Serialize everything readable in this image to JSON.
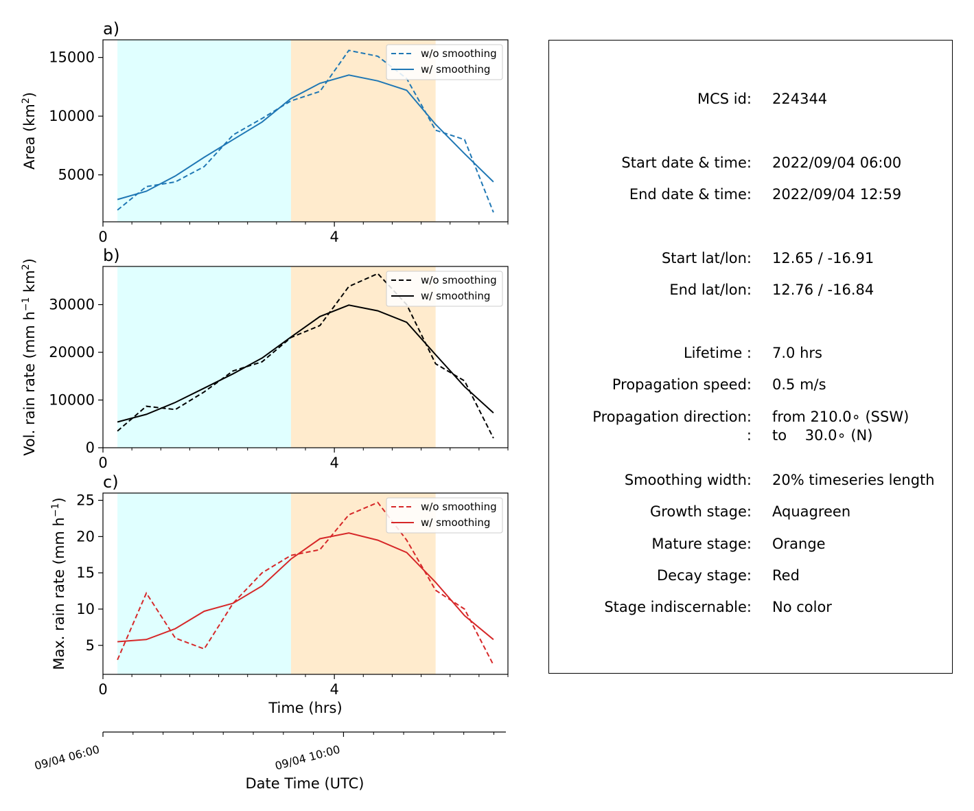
{
  "chart_data": [
    {
      "type": "line",
      "panel_label": "a)",
      "ylabel": "Area  (km",
      "ylabel_sup": "2",
      "ylabel_close": ")",
      "ylim": [
        1000,
        16500
      ],
      "yticks": [
        5000,
        10000,
        15000
      ],
      "color": "#1f77b4",
      "legend": {
        "location": "top-right",
        "entries": [
          "w/o smoothing",
          "w/ smoothing"
        ]
      },
      "series": [
        {
          "name": "w/o smoothing",
          "style": "dashed",
          "x": [
            0.25,
            0.75,
            1.25,
            1.75,
            2.25,
            2.75,
            3.25,
            3.75,
            4.25,
            4.75,
            5.25,
            5.75,
            6.25,
            6.75
          ],
          "y": [
            2000,
            4000,
            4400,
            5700,
            8400,
            9800,
            11300,
            12100,
            15600,
            15100,
            13200,
            8800,
            8000,
            1800
          ]
        },
        {
          "name": "w/ smoothing",
          "style": "solid",
          "x": [
            0.25,
            0.75,
            1.25,
            1.75,
            2.25,
            2.75,
            3.25,
            3.75,
            4.25,
            4.75,
            5.25,
            5.75,
            6.25,
            6.75
          ],
          "y": [
            2900,
            3600,
            4900,
            6500,
            8000,
            9500,
            11500,
            12800,
            13500,
            13000,
            12200,
            9300,
            6800,
            4400
          ]
        }
      ]
    },
    {
      "type": "line",
      "panel_label": "b)",
      "ylabel": "Vol. rain rate (mm h",
      "ylabel_sup": "−1",
      "ylabel_mid": " km",
      "ylabel_sup2": "2",
      "ylabel_close": ")",
      "ylim": [
        0,
        38000
      ],
      "yticks": [
        0,
        10000,
        20000,
        30000
      ],
      "color": "#000000",
      "legend": {
        "location": "top-right",
        "entries": [
          "w/o smoothing",
          "w/ smoothing"
        ]
      },
      "series": [
        {
          "name": "w/o smoothing",
          "style": "dashed",
          "x": [
            0.25,
            0.75,
            1.25,
            1.75,
            2.25,
            2.75,
            3.25,
            3.75,
            4.25,
            4.75,
            5.25,
            5.75,
            6.25,
            6.75
          ],
          "y": [
            3500,
            8700,
            8000,
            11700,
            16100,
            18000,
            23100,
            25600,
            33800,
            36500,
            30000,
            17600,
            14000,
            2000
          ]
        },
        {
          "name": "w/ smoothing",
          "style": "solid",
          "x": [
            0.25,
            0.75,
            1.25,
            1.75,
            2.25,
            2.75,
            3.25,
            3.75,
            4.25,
            4.75,
            5.25,
            5.75,
            6.25,
            6.75
          ],
          "y": [
            5400,
            7000,
            9500,
            12500,
            15500,
            18800,
            23200,
            27500,
            29900,
            28700,
            26300,
            19500,
            12800,
            7300
          ]
        }
      ]
    },
    {
      "type": "line",
      "panel_label": "c)",
      "ylabel": "Max. rain rate  (mm h",
      "ylabel_sup": "−1",
      "ylabel_close": ")",
      "ylim": [
        1,
        26
      ],
      "yticks": [
        5,
        10,
        15,
        20,
        25
      ],
      "color": "#d62728",
      "xlabel": "Time (hrs)",
      "legend": {
        "location": "top-right",
        "entries": [
          "w/o smoothing",
          "w/ smoothing"
        ]
      },
      "series": [
        {
          "name": "w/o smoothing",
          "style": "dashed",
          "x": [
            0.25,
            0.75,
            1.25,
            1.75,
            2.25,
            2.75,
            3.25,
            3.75,
            4.25,
            4.75,
            5.25,
            5.75,
            6.25,
            6.75
          ],
          "y": [
            3.0,
            12.2,
            6.0,
            4.5,
            10.8,
            15.0,
            17.4,
            18.2,
            23.0,
            24.7,
            19.5,
            12.6,
            10.0,
            2.3
          ]
        },
        {
          "name": "w/ smoothing",
          "style": "solid",
          "x": [
            0.25,
            0.75,
            1.25,
            1.75,
            2.25,
            2.75,
            3.25,
            3.75,
            4.25,
            4.75,
            5.25,
            5.75,
            6.25,
            6.75
          ],
          "y": [
            5.5,
            5.8,
            7.3,
            9.7,
            10.8,
            13.2,
            16.9,
            19.7,
            20.5,
            19.5,
            17.8,
            13.7,
            9.1,
            5.8
          ]
        }
      ]
    }
  ],
  "time_axis": {
    "xlim": [
      0,
      7
    ],
    "xticks_major": [
      0,
      4
    ],
    "xticks_minor": [
      0.5,
      1,
      1.5,
      2,
      2.5,
      3,
      3.5,
      4.5,
      5,
      5.5,
      6,
      6.5,
      7
    ],
    "growth_span": [
      0.25,
      3.25
    ],
    "mature_span": [
      3.25,
      5.75
    ],
    "growth_color": "#e0ffff",
    "mature_color": "#ffebcd"
  },
  "date_axis": {
    "xlabel": "Date Time (UTC)",
    "ticks": [
      {
        "hours": 0,
        "label": "09/04 06:00"
      },
      {
        "hours": 4,
        "label": "09/04 10:00"
      }
    ]
  },
  "info": {
    "rows": [
      {
        "label": "MCS id:",
        "value": "224344"
      },
      {
        "label": "Start date & time:",
        "value": "2022/09/04 06:00"
      },
      {
        "label": "End date & time:",
        "value": "2022/09/04 12:59"
      },
      {
        "label": "Start lat/lon:",
        "value": "12.65 / -16.91"
      },
      {
        "label": "End lat/lon:",
        "value": "12.76 / -16.84"
      },
      {
        "label": "Lifetime :",
        "value": "7.0 hrs"
      },
      {
        "label": "Propagation speed:",
        "value": "0.5 m/s"
      },
      {
        "label": "Propagation direction:",
        "value": "from 210.0∘ (SSW)"
      },
      {
        "label": ":",
        "value": "to    30.0∘ (N)"
      },
      {
        "label": "Smoothing width:",
        "value": "20% timeseries length"
      },
      {
        "label": "Growth stage:",
        "value": "Aquagreen"
      },
      {
        "label": "Mature stage:",
        "value": "Orange"
      },
      {
        "label": "Decay stage:",
        "value": "Red"
      },
      {
        "label": "Stage indiscernable:",
        "value": "No color"
      }
    ]
  }
}
